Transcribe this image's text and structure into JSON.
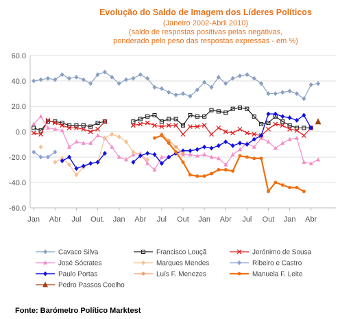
{
  "chart_data": {
    "type": "line",
    "title": "Evolução do Saldo  de Imagem dos Líderes Políticos",
    "subtitle_lines": [
      "(Janeiro 2002-Abril 2010)",
      "(saldo de respostas positivas pelas negativas,",
      "ponderado pelo peso das respostas expressas - em %)"
    ],
    "ylim": [
      -60,
      60
    ],
    "yticks": [
      "60.0",
      "40.0",
      "20.0",
      "0.0",
      "-20.0",
      "-40.0",
      "-60.0"
    ],
    "xticks": [
      "Jan",
      "Abr",
      "Jul",
      "Out.",
      "Jan",
      "Abr",
      "Jul",
      "Out",
      "Jan",
      "Abr",
      "Jul",
      "Out",
      "Jan",
      "Abr"
    ],
    "x_count": 43,
    "grid": true,
    "legend_position": "bottom",
    "source": "Fonte: Barómetro Político Marktest",
    "series": [
      {
        "name": "Cavaco Silva",
        "color": "#8AA0C0",
        "marker": "diamond",
        "width": 1.2,
        "values": [
          40,
          41,
          42,
          41,
          45,
          42,
          43,
          41,
          38,
          45,
          47,
          43,
          38,
          41,
          42,
          45,
          42,
          35,
          34,
          31,
          29,
          30,
          28,
          33,
          39,
          35,
          43,
          38,
          42,
          44,
          45,
          42,
          38,
          30,
          30,
          31,
          32,
          30,
          26,
          37,
          38,
          null,
          null
        ]
      },
      {
        "name": "Francisco Louçã",
        "color": "#222222",
        "marker": "square",
        "width": 1.2,
        "values": [
          3,
          1,
          8,
          8,
          7,
          5,
          5,
          5,
          4,
          7,
          8,
          null,
          null,
          null,
          8,
          10,
          12,
          13,
          8,
          10,
          10,
          5,
          13,
          12,
          12,
          17,
          16,
          15,
          18,
          19,
          18,
          12,
          6,
          7,
          12,
          8,
          5,
          3,
          3,
          3,
          null,
          null,
          null
        ]
      },
      {
        "name": "Jerónimo de Sousa",
        "color": "#E02020",
        "marker": "x",
        "width": 1.2,
        "values": [
          -1,
          -2,
          9,
          7,
          5,
          3,
          3,
          2,
          0,
          2,
          8,
          null,
          null,
          null,
          5,
          6,
          7,
          5,
          4,
          5,
          5,
          -2,
          4,
          4,
          5,
          -2,
          3,
          0,
          -1,
          2,
          -1,
          -2,
          -3,
          2,
          6,
          5,
          2,
          1,
          -3,
          3,
          null,
          null,
          null
        ]
      },
      {
        "name": "José Sócrates",
        "color": "#F48CC8",
        "marker": "triangle",
        "width": 1.2,
        "values": [
          6,
          12,
          3,
          2,
          1,
          -12,
          -8,
          -9,
          -9,
          -3,
          -5,
          -12,
          -20,
          -22,
          -18,
          -17,
          -25,
          -30,
          -20,
          -20,
          -17,
          -18,
          -18,
          -19,
          -18,
          -20,
          -21,
          -26,
          -18,
          -14,
          -9,
          -12,
          -5,
          -8,
          -13,
          -9,
          -6,
          -5,
          -24,
          -25,
          -22,
          null,
          null
        ]
      },
      {
        "name": "Marques Mendes",
        "color": "#F8C090",
        "marker": "diamond",
        "width": 1.2,
        "values": [
          null,
          -12,
          null,
          -24,
          -21,
          -26,
          -34,
          -28,
          -25,
          -24,
          -5,
          -2,
          -4,
          -8,
          -16,
          -18,
          -22,
          null,
          null,
          null,
          null,
          null,
          null,
          null,
          null,
          null,
          null,
          null,
          null,
          null,
          null,
          null,
          null,
          null,
          null,
          null,
          null,
          null,
          null,
          null,
          null,
          null,
          null
        ]
      },
      {
        "name": "Ribeiro e Castro",
        "color": "#8AA0D8",
        "marker": "diamond",
        "width": 1.2,
        "values": [
          -16,
          -20,
          -20,
          -16,
          null,
          null,
          null,
          null,
          null,
          null,
          null,
          null,
          null,
          null,
          null,
          null,
          null,
          null,
          null,
          null,
          null,
          null,
          null,
          null,
          null,
          null,
          null,
          null,
          null,
          null,
          null,
          null,
          null,
          null,
          null,
          null,
          null,
          null,
          null,
          null,
          null,
          null,
          null
        ]
      },
      {
        "name": "Paulo Portas",
        "color": "#1010E0",
        "marker": "diamond",
        "width": 1.4,
        "values": [
          null,
          null,
          null,
          null,
          -23,
          -20,
          -29,
          -27,
          -25,
          -24,
          -17,
          null,
          null,
          null,
          -24,
          -19,
          -17,
          -18,
          -25,
          -20,
          -17,
          -15,
          -15,
          -14,
          -12,
          -13,
          -11,
          -8,
          -11,
          -9,
          -10,
          -6,
          -3,
          14,
          14,
          12,
          11,
          9,
          13,
          3,
          null,
          null,
          null
        ]
      },
      {
        "name": "Luís F. Menezes",
        "color": "#F0A070",
        "marker": "circle",
        "width": 1.2,
        "values": [
          null,
          null,
          null,
          null,
          null,
          null,
          null,
          null,
          null,
          null,
          null,
          null,
          null,
          null,
          null,
          null,
          null,
          null,
          -2,
          -7,
          -12,
          -17,
          null,
          null,
          null,
          null,
          null,
          null,
          null,
          null,
          null,
          null,
          null,
          null,
          null,
          null,
          null,
          null,
          null,
          null,
          null,
          null,
          null
        ]
      },
      {
        "name": "Manuela F. Leite",
        "color": "#F07010",
        "marker": "circle",
        "width": 2.2,
        "values": [
          null,
          null,
          null,
          null,
          null,
          null,
          null,
          null,
          null,
          null,
          null,
          null,
          null,
          null,
          null,
          null,
          null,
          -5,
          -3,
          -9,
          -16,
          -24,
          -34,
          -35,
          -35,
          -33,
          -30,
          -30,
          -31,
          -19,
          -20,
          -21,
          -21,
          -47,
          -40,
          -42,
          -44,
          -44,
          -47,
          null,
          null,
          null,
          null
        ]
      },
      {
        "name": "Pedro Passos Coelho",
        "color": "#A04010",
        "marker": "triangle",
        "width": 1.2,
        "values": [
          null,
          null,
          null,
          null,
          null,
          null,
          null,
          null,
          null,
          null,
          null,
          null,
          null,
          null,
          null,
          null,
          null,
          null,
          null,
          null,
          null,
          null,
          null,
          null,
          null,
          null,
          null,
          null,
          null,
          null,
          null,
          null,
          null,
          null,
          null,
          null,
          null,
          null,
          null,
          null,
          8,
          null,
          null
        ]
      }
    ]
  }
}
